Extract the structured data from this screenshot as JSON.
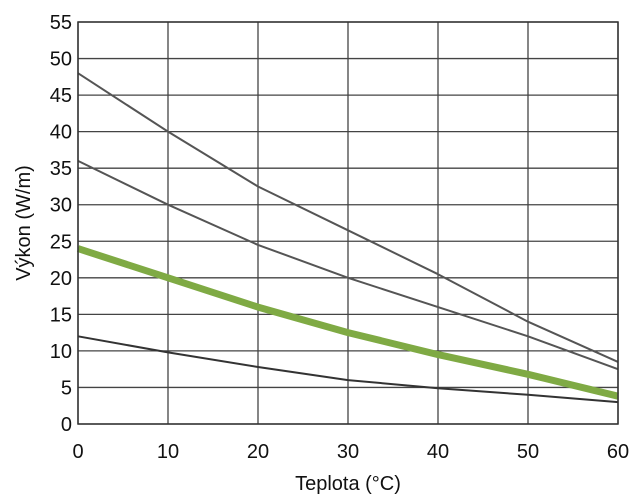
{
  "chart_data": {
    "type": "line",
    "title": "",
    "xlabel": "Teplota (°C)",
    "ylabel": "Výkon (W/m)",
    "xlim": [
      0,
      60
    ],
    "ylim": [
      0,
      55
    ],
    "grid": true,
    "x_ticks": [
      "0",
      "10",
      "20",
      "30",
      "40",
      "50",
      "60"
    ],
    "y_ticks": [
      "0",
      "5",
      "10",
      "15",
      "20",
      "25",
      "30",
      "35",
      "40",
      "45",
      "50",
      "55"
    ],
    "series": [
      {
        "color": "#555555",
        "x": [
          0,
          10,
          20,
          30,
          40,
          50,
          60
        ],
        "y": [
          48,
          40,
          32.5,
          26.5,
          20.5,
          14,
          8.5
        ]
      },
      {
        "color": "#555555",
        "x": [
          0,
          10,
          20,
          30,
          40,
          50,
          60
        ],
        "y": [
          36,
          30,
          24.5,
          20,
          16,
          12,
          7.5
        ]
      },
      {
        "color": "#7faa44",
        "x": [
          0,
          10,
          20,
          30,
          40,
          50,
          60
        ],
        "y": [
          24,
          20,
          16,
          12.5,
          9.5,
          6.8,
          3.8
        ]
      },
      {
        "color": "#333333",
        "x": [
          0,
          10,
          20,
          30,
          40,
          50,
          60
        ],
        "y": [
          12,
          9.8,
          7.8,
          6,
          4.9,
          4,
          3
        ]
      }
    ]
  }
}
